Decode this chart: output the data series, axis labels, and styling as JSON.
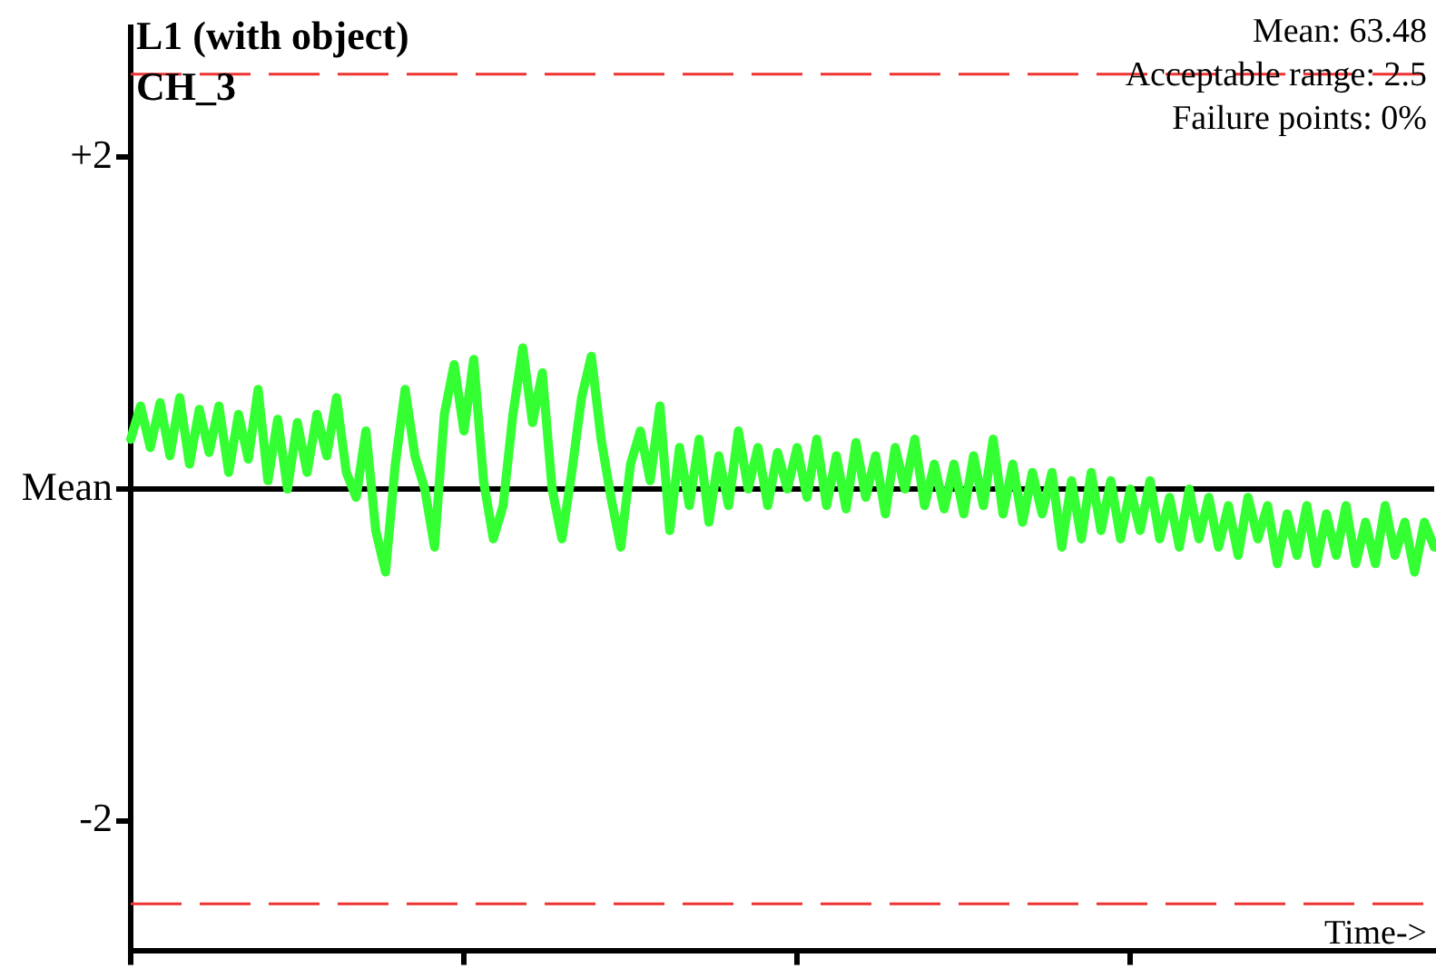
{
  "chart_data": {
    "type": "line",
    "title": "L1 (with object)",
    "subtitle": "CH_3",
    "xlabel": "Time->",
    "annotations": [
      "Mean: 63.48",
      "Acceptable range: 2.5",
      "Failure points: 0%"
    ],
    "categories": [
      null,
      null,
      null,
      null,
      null,
      null,
      null,
      null,
      null,
      null,
      null,
      null,
      null,
      null,
      null,
      null,
      null,
      null,
      null,
      null,
      null,
      null,
      null,
      null,
      null,
      null,
      null,
      null,
      null,
      null,
      null,
      null,
      null,
      null,
      null,
      null,
      null,
      null,
      null,
      null,
      null,
      null,
      null,
      null,
      null,
      null,
      null,
      null,
      null,
      null,
      null,
      null,
      null,
      null,
      null,
      null,
      null,
      null,
      null,
      null,
      null,
      null,
      null,
      null,
      null,
      null,
      null,
      null,
      null,
      null,
      null,
      null,
      null,
      null,
      null,
      null,
      null,
      null,
      null,
      null,
      null,
      null,
      null,
      null,
      null,
      null,
      null,
      null,
      null,
      null,
      null,
      null,
      null,
      null,
      null,
      null,
      null,
      null,
      null,
      null,
      null,
      null,
      null,
      null,
      null,
      null,
      null,
      null,
      null,
      null,
      null,
      null,
      null,
      null,
      null,
      null,
      null,
      null,
      null,
      null,
      null,
      null,
      null,
      null,
      null,
      null,
      null,
      null,
      null,
      null,
      null,
      null,
      null,
      null
    ],
    "series": [
      {
        "color": "#33ff33",
        "values": [
          0.3,
          0.5,
          0.25,
          0.52,
          0.2,
          0.55,
          0.15,
          0.48,
          0.22,
          0.5,
          0.1,
          0.45,
          0.18,
          0.6,
          0.05,
          0.42,
          0,
          0.4,
          0.1,
          0.45,
          0.2,
          0.55,
          0.1,
          -0.05,
          0.35,
          -0.25,
          -0.5,
          0.15,
          0.6,
          0.2,
          0,
          -0.35,
          0.45,
          0.75,
          0.35,
          0.78,
          0.05,
          -0.3,
          -0.1,
          0.45,
          0.85,
          0.4,
          0.7,
          0,
          -0.3,
          0.1,
          0.55,
          0.8,
          0.3,
          -0.05,
          -0.35,
          0.15,
          0.35,
          0.05,
          0.5,
          -0.25,
          0.25,
          -0.1,
          0.3,
          -0.2,
          0.2,
          -0.1,
          0.35,
          0,
          0.25,
          -0.1,
          0.22,
          0,
          0.25,
          -0.05,
          0.3,
          -0.1,
          0.2,
          -0.12,
          0.28,
          -0.05,
          0.2,
          -0.15,
          0.25,
          0,
          0.3,
          -0.1,
          0.15,
          -0.12,
          0.15,
          -0.15,
          0.2,
          -0.1,
          0.3,
          -0.15,
          0.15,
          -0.2,
          0.1,
          -0.15,
          0.1,
          -0.35,
          0.05,
          -0.3,
          0.1,
          -0.25,
          0.05,
          -0.3,
          0,
          -0.25,
          0.05,
          -0.3,
          -0.05,
          -0.35,
          0,
          -0.3,
          -0.05,
          -0.35,
          -0.1,
          -0.4,
          -0.05,
          -0.3,
          -0.1,
          -0.45,
          -0.15,
          -0.4,
          -0.1,
          -0.45,
          -0.15,
          -0.4,
          -0.1,
          -0.45,
          -0.2,
          -0.45,
          -0.1,
          -0.4,
          -0.2,
          -0.5,
          -0.2,
          -0.35
        ]
      }
    ],
    "ylim": [
      -2.78,
      2.78
    ],
    "yticks": [
      {
        "value": 2,
        "label": "+2"
      },
      {
        "value": 0,
        "label": "Mean"
      },
      {
        "value": -2,
        "label": "-2"
      }
    ],
    "ref_lines": [
      {
        "axis": "y",
        "value": 2.5,
        "color": "#ee3333",
        "line_style": "dashed"
      },
      {
        "axis": "y",
        "value": 0,
        "color": "#000000",
        "line_style": "solid"
      },
      {
        "axis": "y",
        "value": -2.5,
        "color": "#ee3333",
        "line_style": "dashed"
      }
    ],
    "tick_labels": "y",
    "grid": false,
    "legend": false,
    "marker": "none",
    "line_style": "solid"
  }
}
